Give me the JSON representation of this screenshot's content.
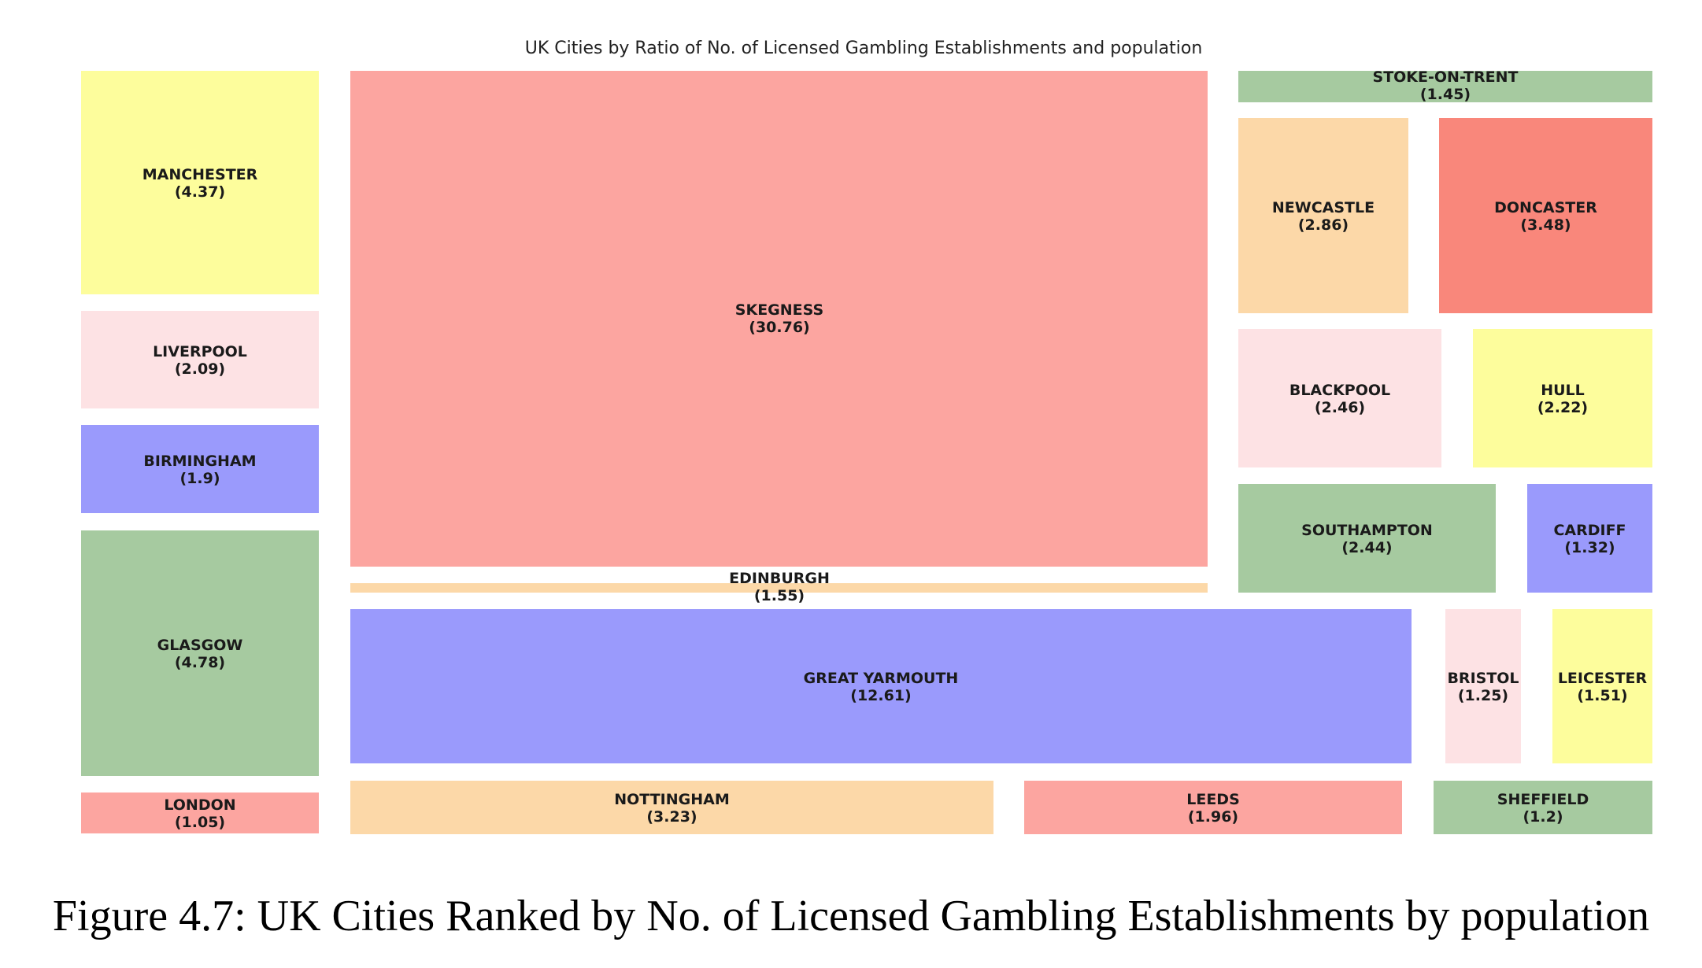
{
  "caption": "Figure 4.7: UK Cities Ranked by No. of Licensed Gambling Establishments by population",
  "chart_data": {
    "type": "treemap",
    "title": "UK Cities by Ratio of No. of Licensed Gambling Establishments and population",
    "palette": {
      "red": "#f9877b",
      "salmon": "#fca5a0",
      "yellow": "#fdfd9c",
      "pink": "#fde2e4",
      "blue": "#9a9afc",
      "green": "#a6caa0",
      "orange": "#fcd8a8"
    },
    "items": [
      {
        "name": "MANCHESTER",
        "value": 4.37,
        "label": "(4.37)",
        "color": "#fdfd9c"
      },
      {
        "name": "LIVERPOOL",
        "value": 2.09,
        "label": "(2.09)",
        "color": "#fde2e4"
      },
      {
        "name": "BIRMINGHAM",
        "value": 1.9,
        "label": "(1.9)",
        "color": "#9a9afc"
      },
      {
        "name": "GLASGOW",
        "value": 4.78,
        "label": "(4.78)",
        "color": "#a6caa0"
      },
      {
        "name": "LONDON",
        "value": 1.05,
        "label": "(1.05)",
        "color": "#fca5a0"
      },
      {
        "name": "SKEGNESS",
        "value": 30.76,
        "label": "(30.76)",
        "color": "#fca5a0"
      },
      {
        "name": "EDINBURGH",
        "value": 1.55,
        "label": "(1.55)",
        "color": "#fcd8a8"
      },
      {
        "name": "GREAT YARMOUTH",
        "value": 12.61,
        "label": "(12.61)",
        "color": "#9a9afc"
      },
      {
        "name": "NOTTINGHAM",
        "value": 3.23,
        "label": "(3.23)",
        "color": "#fcd8a8"
      },
      {
        "name": "LEEDS",
        "value": 1.96,
        "label": "(1.96)",
        "color": "#fca5a0"
      },
      {
        "name": "STOKE-ON-TRENT",
        "value": 1.45,
        "label": "(1.45)",
        "color": "#a6caa0"
      },
      {
        "name": "NEWCASTLE",
        "value": 2.86,
        "label": "(2.86)",
        "color": "#fcd8a8"
      },
      {
        "name": "DONCASTER",
        "value": 3.48,
        "label": "(3.48)",
        "color": "#f9877b"
      },
      {
        "name": "BLACKPOOL",
        "value": 2.46,
        "label": "(2.46)",
        "color": "#fde2e4"
      },
      {
        "name": "HULL",
        "value": 2.22,
        "label": "(2.22)",
        "color": "#fdfd9c"
      },
      {
        "name": "SOUTHAMPTON",
        "value": 2.44,
        "label": "(2.44)",
        "color": "#a6caa0"
      },
      {
        "name": "CARDIFF",
        "value": 1.32,
        "label": "(1.32)",
        "color": "#9a9afc"
      },
      {
        "name": "BRISTOL",
        "value": 1.25,
        "label": "(1.25)",
        "color": "#fde2e4"
      },
      {
        "name": "LEICESTER",
        "value": 1.51,
        "label": "(1.51)",
        "color": "#fdfd9c"
      },
      {
        "name": "SHEFFIELD",
        "value": 1.2,
        "label": "(1.2)",
        "color": "#a6caa0"
      }
    ]
  }
}
